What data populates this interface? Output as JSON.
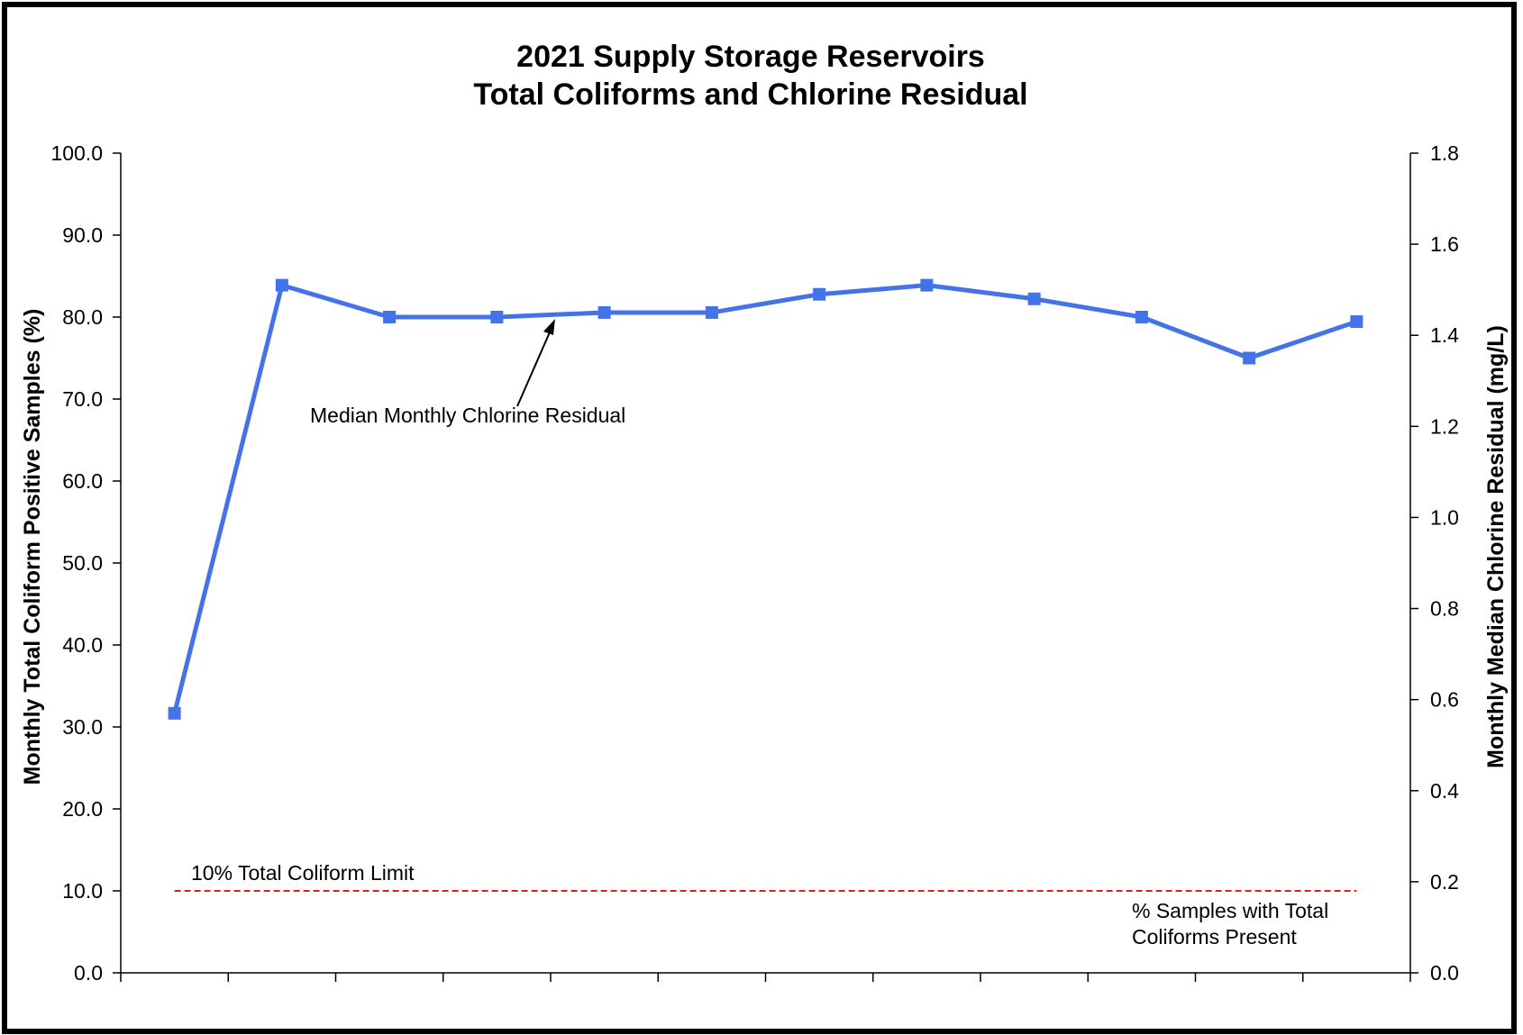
{
  "chart_data": {
    "type": "line",
    "title": [
      "2021 Supply Storage Reservoirs",
      "Total Coliforms and Chlorine Residual"
    ],
    "ylabel": "Monthly Total Coliform Positive Samples (%)",
    "y2label": "Monthly Median Chlorine Residual (mg/L)",
    "ylim": [
      0,
      100
    ],
    "y2lim": [
      0,
      1.8
    ],
    "yticks": [
      "0.0",
      "10.0",
      "20.0",
      "30.0",
      "40.0",
      "50.0",
      "60.0",
      "70.0",
      "80.0",
      "90.0",
      "100.0"
    ],
    "y2ticks": [
      "0.0",
      "0.2",
      "0.4",
      "0.6",
      "0.8",
      "1.0",
      "1.2",
      "1.4",
      "1.6",
      "1.8"
    ],
    "categories_count": 12,
    "series": [
      {
        "axis": "right",
        "color": "#4472e8",
        "marker": "square",
        "values": [
          0.57,
          1.51,
          1.44,
          1.44,
          1.45,
          1.45,
          1.49,
          1.51,
          1.48,
          1.44,
          1.35,
          1.43
        ]
      },
      {
        "axis": "left",
        "color": "#e02020",
        "style": "dashed",
        "values": [
          10,
          10,
          10,
          10,
          10,
          10,
          10,
          10,
          10,
          10,
          10,
          10
        ]
      }
    ],
    "annotations": {
      "chlorine": "Median Monthly Chlorine Residual",
      "limit": "10% Total Coliform Limit",
      "samples_line1": "% Samples with Total",
      "samples_line2": "Coliforms Present"
    },
    "grid": false,
    "legend": "none"
  }
}
